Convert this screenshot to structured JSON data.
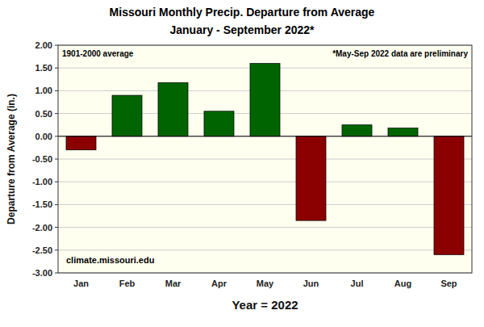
{
  "chart_data": {
    "type": "bar",
    "title": "Missouri Monthly Precip. Departure from Average",
    "subtitle": "January - September 2022*",
    "categories": [
      "Jan",
      "Feb",
      "Mar",
      "Apr",
      "May",
      "Jun",
      "Jul",
      "Aug",
      "Sep"
    ],
    "values": [
      -0.3,
      0.9,
      1.18,
      0.55,
      1.6,
      -1.85,
      0.25,
      0.18,
      -2.6
    ],
    "colors": [
      "#8B0000",
      "#006400",
      "#006400",
      "#006400",
      "#006400",
      "#8B0000",
      "#006400",
      "#006400",
      "#8B0000"
    ],
    "ylim": [
      -3.0,
      2.0
    ],
    "yticks": [
      {
        "value": -3.0,
        "label": "-3.00"
      },
      {
        "value": -2.5,
        "label": "-2.50"
      },
      {
        "value": -2.0,
        "label": "-2.00"
      },
      {
        "value": -1.5,
        "label": "-1.50"
      },
      {
        "value": -1.0,
        "label": "-1.00"
      },
      {
        "value": -0.5,
        "label": "-0.50"
      },
      {
        "value": 0.0,
        "label": "0.00"
      },
      {
        "value": 0.5,
        "label": "0.50"
      },
      {
        "value": 1.0,
        "label": "1.00"
      },
      {
        "value": 1.5,
        "label": "1.50"
      },
      {
        "value": 2.0,
        "label": "2.00"
      }
    ],
    "y_label": "Departure from Average (in.)",
    "x_label": "Year = 2022",
    "annotations": [
      "1901-2000 average",
      "*May-Sep 2022 data are preliminary",
      "climate.missouri.edu"
    ],
    "grid": true
  }
}
